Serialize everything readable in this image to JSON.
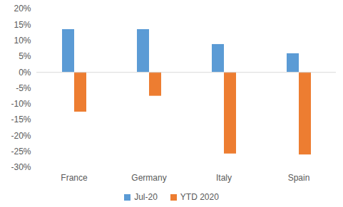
{
  "chart_data": {
    "type": "bar",
    "categories": [
      "France",
      "Germany",
      "Italy",
      "Spain"
    ],
    "series": [
      {
        "name": "Jul-20",
        "color": "#5b9bd5",
        "values": [
          13.5,
          13.5,
          8.8,
          5.9
        ]
      },
      {
        "name": "YTD 2020",
        "color": "#ed7d31",
        "values": [
          -12.5,
          -7.5,
          -25.7,
          -26
        ]
      }
    ],
    "ylim": [
      -30,
      20
    ],
    "yticks": [
      {
        "value": -30,
        "label": "-30%"
      },
      {
        "value": -25,
        "label": "-25%"
      },
      {
        "value": -20,
        "label": "-20%"
      },
      {
        "value": -15,
        "label": "-15%"
      },
      {
        "value": -10,
        "label": "-10%"
      },
      {
        "value": -5,
        "label": "-5%"
      },
      {
        "value": 0,
        "label": "0%"
      },
      {
        "value": 5,
        "label": "5%"
      },
      {
        "value": 10,
        "label": "10%"
      },
      {
        "value": 15,
        "label": "15%"
      },
      {
        "value": 20,
        "label": "20%"
      }
    ],
    "grid": false,
    "legend": "bottom"
  }
}
